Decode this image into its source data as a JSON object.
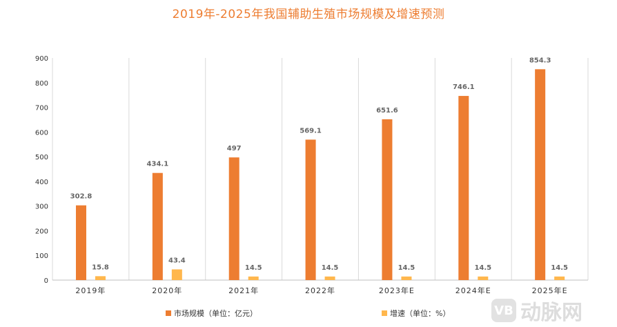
{
  "chart_data": {
    "type": "bar",
    "title": "2019年-2025年我国辅助生殖市场规模及增速预测",
    "categories": [
      "2019年",
      "2020年",
      "2021年",
      "2022年",
      "2023年E",
      "2024年E",
      "2025年E"
    ],
    "series": [
      {
        "name": "市场规模（单位：亿元）",
        "color": "#ED7D31",
        "values": [
          302.8,
          434.1,
          497,
          569.1,
          651.6,
          746.1,
          854.3
        ],
        "labels": [
          "302.8",
          "434.1",
          "497",
          "569.1",
          "651.6",
          "746.1",
          "854.3"
        ]
      },
      {
        "name": "增速（单位：%）",
        "color": "#FFB74D",
        "values": [
          15.8,
          43.4,
          14.5,
          14.5,
          14.5,
          14.5,
          14.5
        ],
        "labels": [
          "15.8",
          "43.4",
          "14.5",
          "14.5",
          "14.5",
          "14.5",
          "14.5"
        ]
      }
    ],
    "yticks": [
      "0",
      "100",
      "200",
      "300",
      "400",
      "500",
      "600",
      "700",
      "800",
      "900"
    ],
    "ylim": [
      0,
      900
    ],
    "grid": "vertical category separators",
    "legend": "bottom"
  },
  "watermark": {
    "logo": "VB",
    "text": "动脉网"
  }
}
